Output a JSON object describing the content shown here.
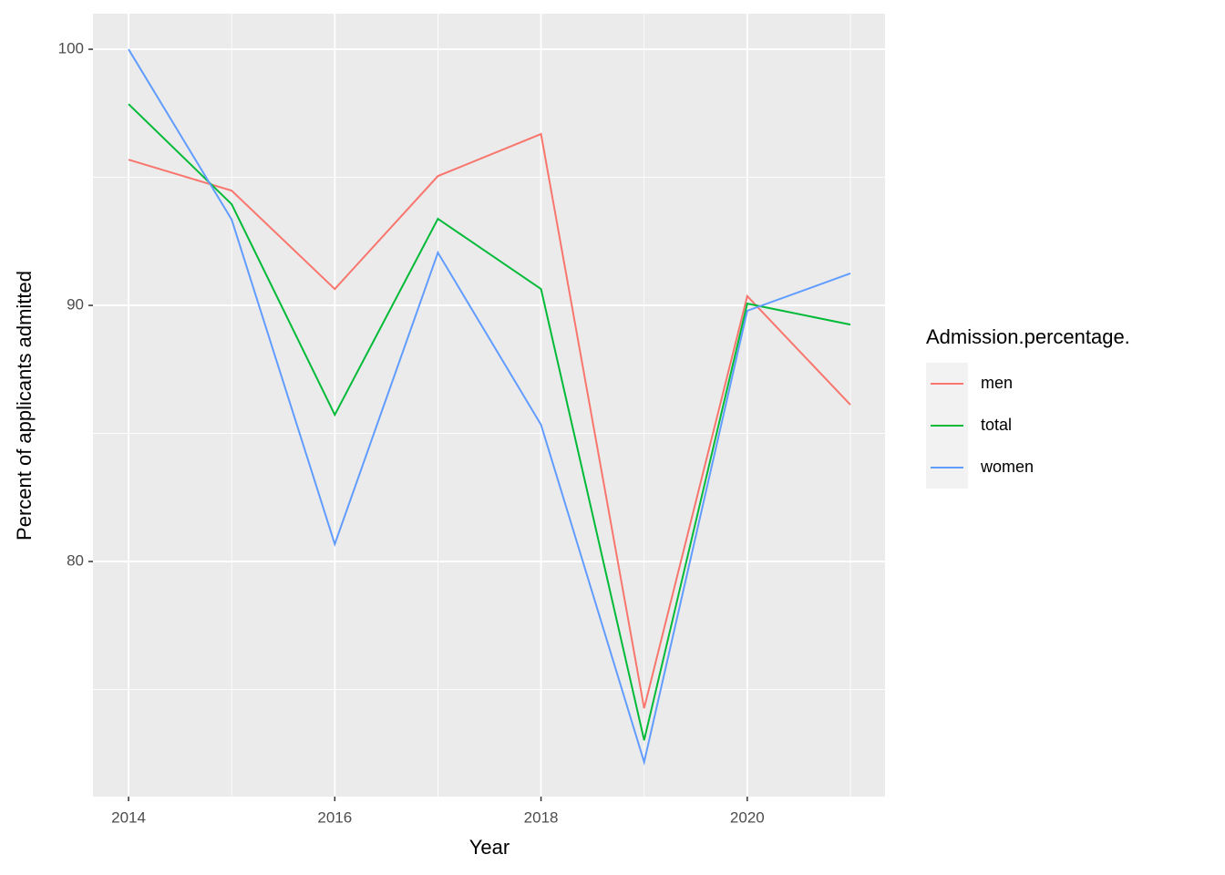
{
  "chart_data": {
    "type": "line",
    "x_label": "Year",
    "y_label": "Percent of applicants admitted",
    "legend_title": "Admission.percentage.",
    "legend_position": "right",
    "x": [
      2014,
      2015,
      2016,
      2017,
      2018,
      2019,
      2020,
      2021
    ],
    "series": [
      {
        "name": "men",
        "color": "#f8766d",
        "values": [
          95.69,
          94.48,
          90.64,
          95.05,
          96.69,
          74.27,
          90.36,
          86.12
        ]
      },
      {
        "name": "total",
        "color": "#00ba38",
        "values": [
          97.86,
          93.95,
          85.73,
          93.38,
          90.64,
          73.02,
          90.07,
          89.25
        ]
      },
      {
        "name": "women",
        "color": "#619cff",
        "values": [
          100,
          93.35,
          80.68,
          92.06,
          85.34,
          72.17,
          89.79,
          91.25
        ]
      }
    ],
    "xlim": [
      2013.655,
      2021.336
    ],
    "ylim": [
      70.82,
      101.39
    ],
    "xticks": [
      2014,
      2016,
      2018,
      2020
    ],
    "yticks": [
      80,
      90,
      100
    ],
    "x_minor_grid": [
      2015,
      2017,
      2019,
      2021
    ],
    "y_minor_grid": [
      75,
      85,
      95
    ],
    "grid": true
  }
}
